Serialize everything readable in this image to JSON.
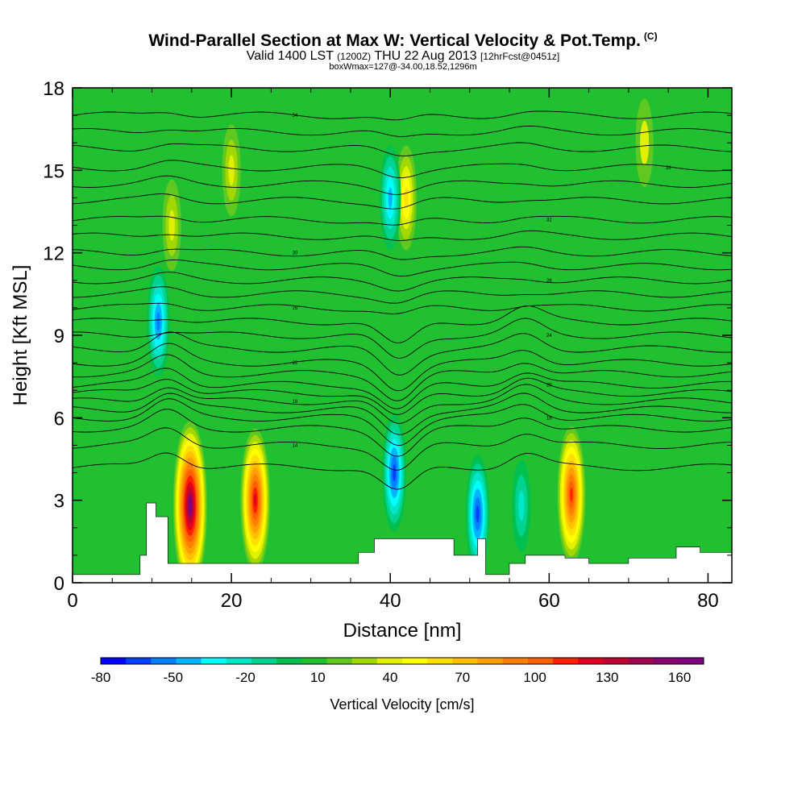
{
  "header": {
    "title_main": "Wind-Parallel Section at Max W: Vertical Velocity & Pot.Temp.",
    "title_mark": "(C)",
    "valid_a": "Valid 1400 LST",
    "valid_b": "(1200Z)",
    "valid_c": "THU 22 Aug 2013",
    "valid_d": "[12hrFcst@0451z]",
    "subline": "boxWmax=127@-34.00,18.52,1296m"
  },
  "chart_data": {
    "type": "contour-section",
    "xlabel": "Distance [nm]",
    "ylabel": "Height [Kft MSL]",
    "xlim": [
      0,
      83
    ],
    "ylim": [
      0,
      18
    ],
    "xticks": [
      "0",
      "20",
      "40",
      "60",
      "80"
    ],
    "yticks": [
      "0",
      "3",
      "6",
      "9",
      "12",
      "15",
      "18"
    ],
    "xtick_values": [
      0,
      20,
      40,
      60,
      80
    ],
    "ytick_values": [
      0,
      3,
      6,
      9,
      12,
      15,
      18
    ],
    "colorbar": {
      "title": "Vertical Velocity [cm/s]",
      "range": [
        -80,
        170
      ],
      "labels": [
        "-80",
        "-50",
        "-20",
        "10",
        "40",
        "70",
        "100",
        "130",
        "160"
      ],
      "label_values": [
        -80,
        -50,
        -20,
        10,
        40,
        70,
        100,
        130,
        160
      ],
      "colors": [
        "#0000ff",
        "#0040ff",
        "#0080ff",
        "#00b4ff",
        "#00ffff",
        "#00e6c8",
        "#00d290",
        "#00c050",
        "#20c030",
        "#60c820",
        "#a0d800",
        "#e0f000",
        "#ffff00",
        "#ffe000",
        "#ffc000",
        "#ffa000",
        "#ff8000",
        "#ff6000",
        "#ff2000",
        "#e00020",
        "#c00030",
        "#a00050",
        "#880070",
        "#800080"
      ]
    },
    "background_w": 10,
    "w_features": [
      {
        "x": 14.8,
        "y": 2.8,
        "value": 160
      },
      {
        "x": 23.0,
        "y": 3.0,
        "value": 120
      },
      {
        "x": 62.8,
        "y": 3.2,
        "value": 110
      },
      {
        "x": 42.0,
        "y": 14.0,
        "value": 60
      },
      {
        "x": 40.5,
        "y": 4.0,
        "value": -60
      },
      {
        "x": 40.0,
        "y": 14.0,
        "value": -40
      },
      {
        "x": 51.0,
        "y": 2.5,
        "value": -60
      },
      {
        "x": 10.8,
        "y": 9.5,
        "value": -50
      },
      {
        "x": 56.5,
        "y": 2.8,
        "value": -20
      },
      {
        "x": 12.5,
        "y": 13.0,
        "value": 40
      },
      {
        "x": 20.0,
        "y": 15.0,
        "value": 40
      },
      {
        "x": 72.0,
        "y": 16.0,
        "value": 35
      }
    ],
    "terrain": [
      {
        "x": 0,
        "z": 0.3
      },
      {
        "x": 8.5,
        "z": 0.3
      },
      {
        "x": 8.5,
        "z": 1.0
      },
      {
        "x": 9.3,
        "z": 1.0
      },
      {
        "x": 9.3,
        "z": 2.9
      },
      {
        "x": 10.5,
        "z": 2.9
      },
      {
        "x": 10.5,
        "z": 2.4
      },
      {
        "x": 12.0,
        "z": 2.4
      },
      {
        "x": 12.0,
        "z": 0.7
      },
      {
        "x": 36.0,
        "z": 0.7
      },
      {
        "x": 36.0,
        "z": 1.1
      },
      {
        "x": 38.0,
        "z": 1.1
      },
      {
        "x": 38.0,
        "z": 1.6
      },
      {
        "x": 48.0,
        "z": 1.6
      },
      {
        "x": 48.0,
        "z": 1.0
      },
      {
        "x": 51.0,
        "z": 1.0
      },
      {
        "x": 51.0,
        "z": 1.6
      },
      {
        "x": 52.0,
        "z": 1.6
      },
      {
        "x": 52.0,
        "z": 0.3
      },
      {
        "x": 55.0,
        "z": 0.3
      },
      {
        "x": 55.0,
        "z": 0.7
      },
      {
        "x": 57.0,
        "z": 0.7
      },
      {
        "x": 57.0,
        "z": 1.0
      },
      {
        "x": 62.0,
        "z": 1.0
      },
      {
        "x": 62.0,
        "z": 0.9
      },
      {
        "x": 65.0,
        "z": 0.9
      },
      {
        "x": 65.0,
        "z": 0.7
      },
      {
        "x": 70.0,
        "z": 0.7
      },
      {
        "x": 70.0,
        "z": 0.9
      },
      {
        "x": 76.0,
        "z": 0.9
      },
      {
        "x": 76.0,
        "z": 1.3
      },
      {
        "x": 79.0,
        "z": 1.3
      },
      {
        "x": 79.0,
        "z": 1.1
      },
      {
        "x": 83.0,
        "z": 1.1
      }
    ],
    "isentropes": [
      {
        "theta": "34",
        "y": 17.0
      },
      {
        "theta": "",
        "y": 16.4
      },
      {
        "theta": "",
        "y": 15.8
      },
      {
        "theta": "33",
        "y": 15.1
      },
      {
        "theta": "",
        "y": 14.5
      },
      {
        "theta": "",
        "y": 13.9
      },
      {
        "theta": "32",
        "y": 13.2
      },
      {
        "theta": "",
        "y": 12.6
      },
      {
        "theta": "30",
        "y": 12.0
      },
      {
        "theta": "",
        "y": 11.5
      },
      {
        "theta": "28",
        "y": 11.0
      },
      {
        "theta": "",
        "y": 10.5
      },
      {
        "theta": "26",
        "y": 10.0
      },
      {
        "theta": "",
        "y": 9.5
      },
      {
        "theta": "24",
        "y": 9.0
      },
      {
        "theta": "",
        "y": 8.5
      },
      {
        "theta": "22",
        "y": 8.0
      },
      {
        "theta": "",
        "y": 7.6
      },
      {
        "theta": "20",
        "y": 7.2
      },
      {
        "theta": "",
        "y": 6.9
      },
      {
        "theta": "18",
        "y": 6.6
      },
      {
        "theta": "",
        "y": 6.3
      },
      {
        "theta": "16",
        "y": 6.0
      },
      {
        "theta": "",
        "y": 5.6
      },
      {
        "theta": "14",
        "y": 5.0
      },
      {
        "theta": "",
        "y": 4.2
      }
    ]
  }
}
